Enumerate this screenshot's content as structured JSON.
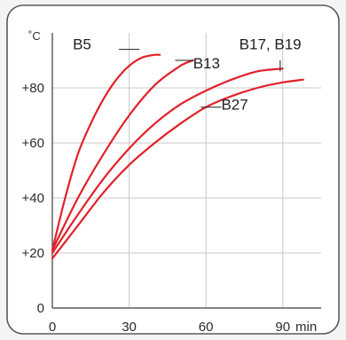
{
  "chart_data": {
    "type": "line",
    "title": "",
    "xlabel": "min",
    "ylabel": "˚C",
    "xlim": [
      0,
      105
    ],
    "ylim": [
      0,
      100
    ],
    "x_ticks": [
      {
        "value": 0,
        "label": "0"
      },
      {
        "value": 30,
        "label": "30"
      },
      {
        "value": 60,
        "label": "60"
      },
      {
        "value": 90,
        "label": "90"
      }
    ],
    "y_ticks": [
      {
        "value": 0,
        "label": "0"
      },
      {
        "value": 20,
        "label": "+20"
      },
      {
        "value": 40,
        "label": "+40"
      },
      {
        "value": 60,
        "label": "+60"
      },
      {
        "value": 80,
        "label": "+80"
      }
    ],
    "grid": true,
    "series_color": "#e2202a",
    "series": [
      {
        "name": "B5",
        "points": [
          [
            0,
            21
          ],
          [
            5,
            40
          ],
          [
            10,
            56
          ],
          [
            15,
            67
          ],
          [
            20,
            76
          ],
          [
            25,
            83
          ],
          [
            30,
            88
          ],
          [
            35,
            91
          ],
          [
            40,
            92
          ],
          [
            42,
            92
          ]
        ]
      },
      {
        "name": "B13",
        "points": [
          [
            0,
            21
          ],
          [
            10,
            40
          ],
          [
            20,
            56
          ],
          [
            30,
            70
          ],
          [
            40,
            81
          ],
          [
            50,
            88
          ],
          [
            55,
            90
          ]
        ]
      },
      {
        "name": "B17, B19",
        "points": [
          [
            0,
            20
          ],
          [
            10,
            34
          ],
          [
            20,
            47
          ],
          [
            30,
            58
          ],
          [
            40,
            67
          ],
          [
            50,
            74
          ],
          [
            60,
            79
          ],
          [
            70,
            83
          ],
          [
            80,
            86
          ],
          [
            90,
            87
          ]
        ]
      },
      {
        "name": "B27",
        "points": [
          [
            0,
            18
          ],
          [
            10,
            30
          ],
          [
            20,
            42
          ],
          [
            30,
            52
          ],
          [
            40,
            60
          ],
          [
            50,
            67
          ],
          [
            60,
            73
          ],
          [
            70,
            77
          ],
          [
            80,
            80
          ],
          [
            90,
            82
          ],
          [
            98,
            83
          ]
        ]
      }
    ],
    "annotations": [
      {
        "text": "B5",
        "label_at": [
          8,
          96
        ],
        "leader": [
          [
            26,
            94
          ],
          [
            34,
            94
          ]
        ]
      },
      {
        "text": "B13",
        "label_at": [
          55,
          89
        ],
        "leader": [
          [
            48,
            90
          ],
          [
            55,
            90
          ]
        ]
      },
      {
        "text": "B17, B19",
        "label_at": [
          73,
          96
        ],
        "leader": [
          [
            89,
            90
          ],
          [
            89,
            86
          ]
        ]
      },
      {
        "text": "B27",
        "label_at": [
          66,
          74
        ],
        "leader": [
          [
            58,
            73
          ],
          [
            66,
            73
          ]
        ]
      }
    ]
  }
}
